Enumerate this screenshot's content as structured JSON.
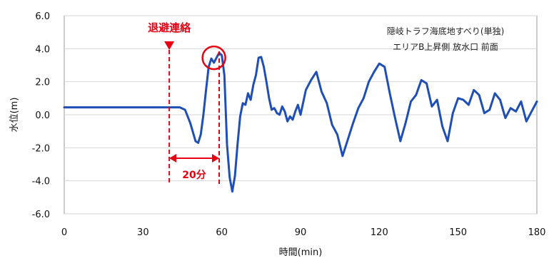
{
  "chart_data": {
    "type": "line",
    "title": "",
    "xlabel": "時間(min)",
    "ylabel": "水位(m)",
    "xlim": [
      0,
      180
    ],
    "ylim": [
      -6.0,
      6.0
    ],
    "xticks": [
      0,
      30,
      60,
      90,
      120,
      150,
      180
    ],
    "yticks": [
      6.0,
      4.0,
      2.0,
      0.0,
      -2.0,
      -4.0,
      -6.0
    ],
    "ytick_labels": [
      "6.0",
      "4.0",
      "2.0",
      "0.0",
      "-2.0",
      "-4.0",
      "-6.0"
    ],
    "grid": true,
    "series": [
      {
        "name": "",
        "color": "#1f4fb5",
        "x": [
          0,
          5,
          10,
          20,
          30,
          35,
          40,
          42,
          44,
          46,
          48,
          50,
          51,
          52,
          53,
          54,
          55,
          56,
          57,
          58,
          59,
          60,
          61,
          62,
          63,
          64,
          65,
          66,
          67,
          68,
          69,
          70,
          71,
          72,
          73,
          74,
          75,
          76,
          77,
          78,
          79,
          80,
          81,
          82,
          83,
          84,
          85,
          86,
          87,
          88,
          89,
          90,
          92,
          94,
          96,
          98,
          100,
          102,
          104,
          106,
          108,
          110,
          112,
          114,
          116,
          118,
          120,
          122,
          124,
          126,
          128,
          130,
          132,
          134,
          136,
          138,
          140,
          142,
          144,
          146,
          148,
          150,
          152,
          154,
          156,
          158,
          160,
          162,
          164,
          166,
          168,
          170,
          172,
          174,
          176,
          178,
          180
        ],
        "values": [
          0.45,
          0.45,
          0.45,
          0.45,
          0.45,
          0.45,
          0.45,
          0.45,
          0.45,
          0.3,
          -0.5,
          -1.6,
          -1.7,
          -1.2,
          0.0,
          1.5,
          2.9,
          3.4,
          3.15,
          3.45,
          3.75,
          3.6,
          2.4,
          -1.8,
          -3.8,
          -4.65,
          -3.7,
          -1.8,
          -0.1,
          0.7,
          0.6,
          1.3,
          0.9,
          1.8,
          2.4,
          3.45,
          3.5,
          2.9,
          2.0,
          1.0,
          0.3,
          0.4,
          0.1,
          0.0,
          0.5,
          0.2,
          -0.4,
          -0.1,
          -0.3,
          0.2,
          0.6,
          0.0,
          1.5,
          2.1,
          2.6,
          1.4,
          0.7,
          -0.6,
          -1.2,
          -2.5,
          -1.5,
          -0.5,
          0.4,
          1.0,
          2.0,
          2.6,
          3.1,
          2.9,
          1.3,
          -0.2,
          -1.6,
          -0.5,
          0.8,
          1.2,
          2.1,
          1.9,
          0.5,
          0.9,
          -0.7,
          -1.6,
          0.1,
          1.0,
          0.9,
          0.6,
          1.5,
          1.2,
          0.1,
          0.3,
          1.3,
          0.9,
          -0.2,
          0.4,
          0.2,
          0.8,
          -0.4,
          0.2,
          0.8
        ]
      }
    ],
    "annotations": {
      "evacuation_label": "退避連絡",
      "duration_label": "20分",
      "note_line1": "隠岐トラフ海底地すべり(単独)",
      "note_line2": "エリアB上昇側 放水口 前面",
      "evacuation_x": 40,
      "peak_x": 59,
      "circle_center": {
        "x": 57,
        "y": 3.45
      }
    }
  }
}
